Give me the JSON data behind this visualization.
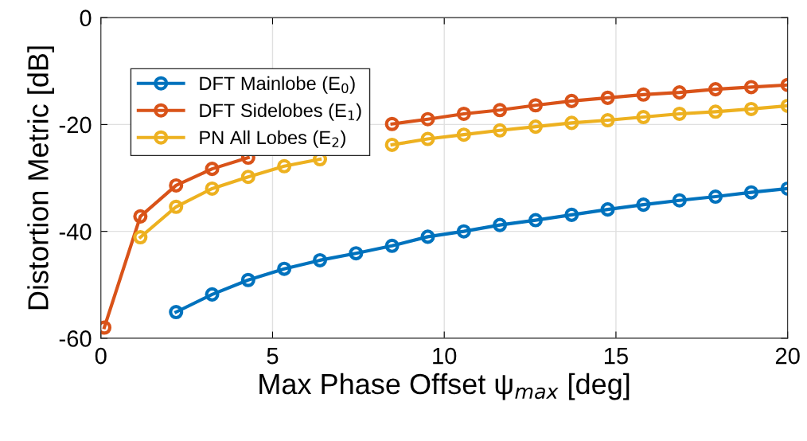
{
  "chart_data": {
    "type": "line",
    "xlabel": "Max Phase Offset ψ$_{max}$ [deg]",
    "ylabel": "Distortion Metric [dB]",
    "x": [
      0.1,
      1.15,
      2.19,
      3.24,
      4.29,
      5.34,
      6.38,
      7.43,
      8.48,
      9.52,
      10.57,
      11.62,
      12.66,
      13.71,
      14.76,
      15.8,
      16.85,
      17.9,
      18.94,
      20.0
    ],
    "series": [
      {
        "name": "DFT Mainlobe (E$_{0}$)",
        "color": "#0072bd",
        "values": [
          null,
          null,
          -55.1,
          -51.8,
          -49.1,
          -47.0,
          -45.4,
          -44.1,
          -42.7,
          -41.0,
          -40.0,
          -38.8,
          -37.9,
          -36.9,
          -35.9,
          -35.0,
          -34.2,
          -33.5,
          -32.7,
          -32.0
        ]
      },
      {
        "name": "DFT Sidelobes (E$_{1}$)",
        "color": "#d95319",
        "values": [
          -58.0,
          -37.2,
          -31.4,
          -28.3,
          -26.2,
          null,
          null,
          null,
          -19.9,
          -19.0,
          -18.0,
          -17.3,
          -16.4,
          -15.6,
          -15.0,
          -14.4,
          -14.0,
          -13.4,
          -13.0,
          -12.6
        ]
      },
      {
        "name": "PN All Lobes (E$_{2}$)",
        "color": "#edb120",
        "values": [
          null,
          -41.1,
          -35.4,
          -32.0,
          -29.8,
          -27.8,
          -26.5,
          null,
          -23.8,
          -22.7,
          -21.9,
          -21.1,
          -20.4,
          -19.7,
          -19.2,
          -18.6,
          -18.0,
          -17.6,
          -17.1,
          -16.5
        ]
      }
    ],
    "xlim": [
      0,
      20
    ],
    "xticks": [
      0,
      5,
      10,
      15,
      20
    ],
    "ylim": [
      -60,
      0
    ],
    "yticks": [
      -60,
      -40,
      -20,
      0
    ],
    "grid": true,
    "legend": "top left",
    "marker": "circle",
    "line_style": "solid"
  }
}
